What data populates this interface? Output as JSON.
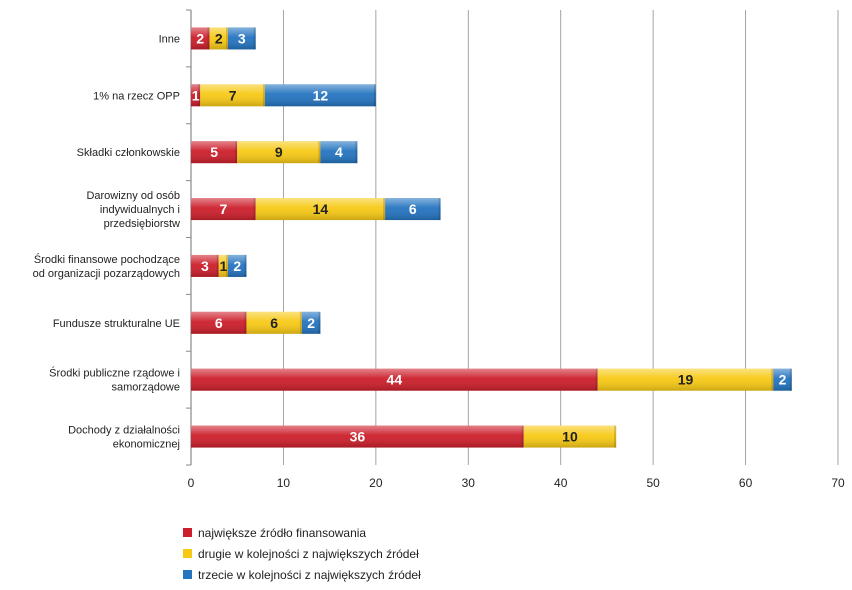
{
  "chart_data": {
    "type": "bar",
    "orientation": "horizontal",
    "stacked": true,
    "categories": [
      "Inne",
      "1% na rzecz OPP",
      "Składki członkowskie",
      "Darowizny od osób indywidualnych i przedsiębiorstw",
      "Środki finansowe pochodzące od organizacji pozarządowych",
      "Fundusze strukturalne UE",
      "Środki publiczne rządowe i samorządowe",
      "Dochody z działalności ekonomicznej"
    ],
    "category_lines": [
      [
        "Inne"
      ],
      [
        "1% na rzecz OPP"
      ],
      [
        "Składki członkowskie"
      ],
      [
        "Darowizny od osób",
        "indywidualnych i",
        "przedsiębiorstw"
      ],
      [
        "Środki finansowe pochodzące",
        "od organizacji pozarządowych"
      ],
      [
        "Fundusze strukturalne UE"
      ],
      [
        "Środki publiczne rządowe i",
        "samorządowe"
      ],
      [
        "Dochody z działalności",
        "ekonomicznej"
      ]
    ],
    "series": [
      {
        "name": "największe źródło finansowania",
        "color": "#cc1f2b",
        "label_color": "#ffffff",
        "values": [
          2,
          1,
          5,
          7,
          3,
          6,
          44,
          36
        ]
      },
      {
        "name": "drugie w kolejności z największych źródeł",
        "color": "#f7c915",
        "label_color": "#222222",
        "values": [
          2,
          7,
          9,
          14,
          1,
          6,
          19,
          10
        ]
      },
      {
        "name": "trzecie w kolejności z największych źródeł",
        "color": "#2474c0",
        "label_color": "#ffffff",
        "values": [
          3,
          12,
          4,
          6,
          2,
          2,
          2,
          null
        ]
      }
    ],
    "xlim": [
      0,
      70
    ],
    "xticks": [
      0,
      10,
      20,
      30,
      40,
      50,
      60,
      70
    ],
    "grid": "vertical",
    "legend_position": "bottom-left",
    "title": "",
    "xlabel": "",
    "ylabel": ""
  }
}
